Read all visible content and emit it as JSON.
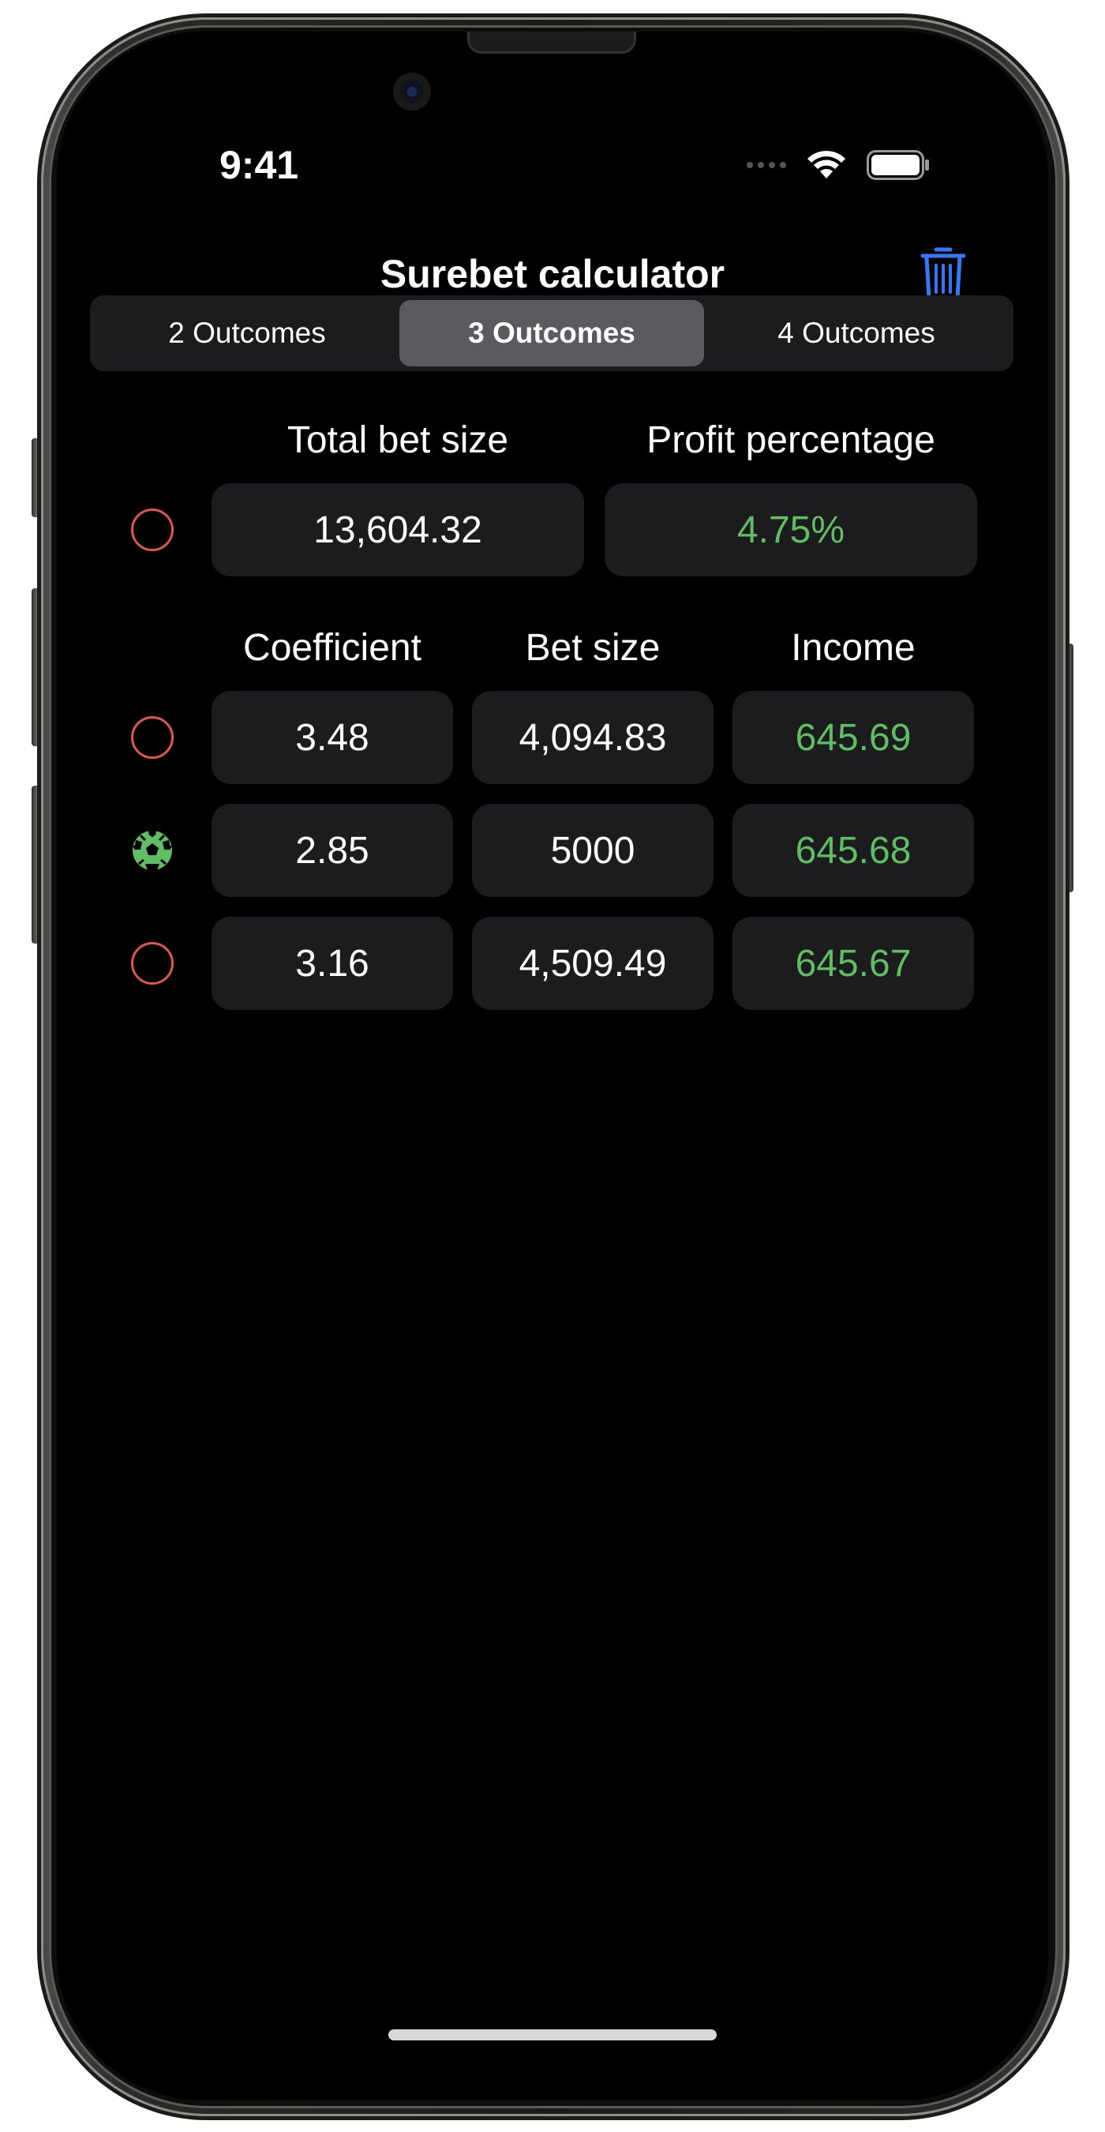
{
  "status_bar": {
    "time": "9:41"
  },
  "nav": {
    "title": "Surebet calculator"
  },
  "segments": [
    {
      "label": "2 Outcomes",
      "active": false
    },
    {
      "label": "3 Outcomes",
      "active": true
    },
    {
      "label": "4 Outcomes",
      "active": false
    }
  ],
  "summary": {
    "total_label": "Total bet size",
    "profit_label": "Profit percentage",
    "total_value": "13,604.32",
    "profit_value": "4.75%"
  },
  "columns": {
    "coefficient": "Coefficient",
    "bet_size": "Bet size",
    "income": "Income"
  },
  "rows": [
    {
      "coefficient": "3.48",
      "bet_size": "4,094.83",
      "income": "645.69",
      "selected": false
    },
    {
      "coefficient": "2.85",
      "bet_size": "5000",
      "income": "645.68",
      "selected": true
    },
    {
      "coefficient": "3.16",
      "bet_size": "4,509.49",
      "income": "645.67",
      "selected": false
    }
  ],
  "colors": {
    "accent": "#3478f6",
    "positive": "#5fbd63",
    "radio_off": "#e05550",
    "cell_bg": "#1c1c1e"
  },
  "icons": {
    "trash": "trash-icon",
    "radio_on": "football-icon",
    "radio_off": "circle-icon"
  }
}
